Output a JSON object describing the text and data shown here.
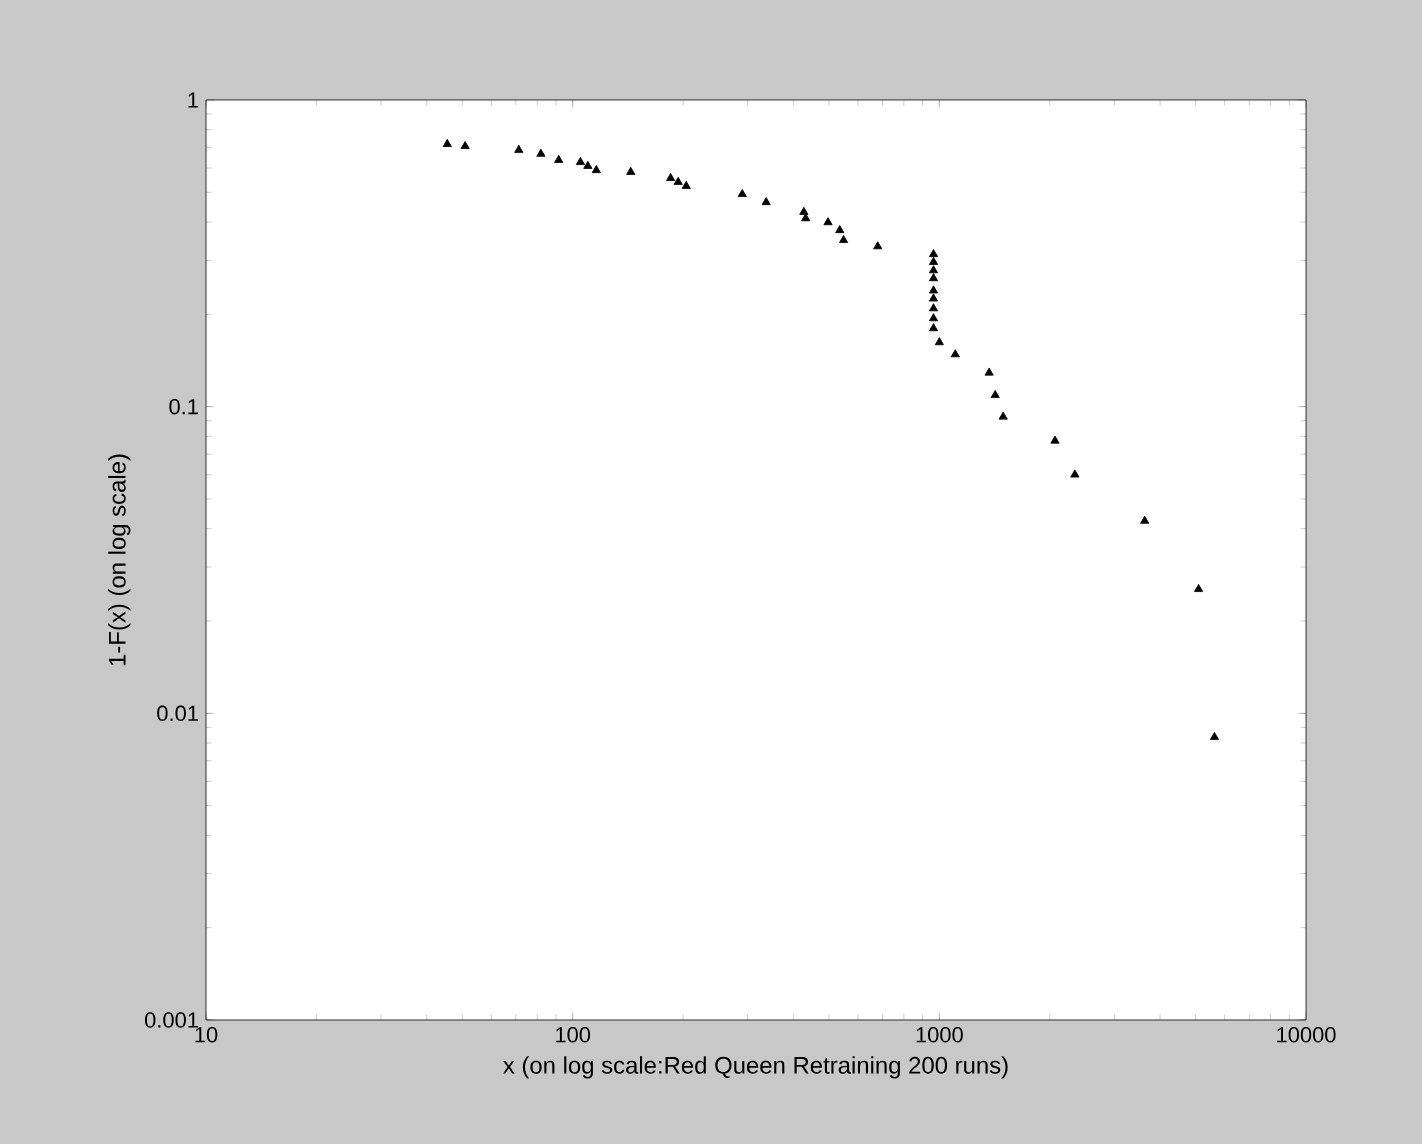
{
  "chart_data": {
    "type": "scatter",
    "xlabel": "x (on log scale:Red Queen Retraining 200 runs)",
    "ylabel": "1-F(x) (on log scale)",
    "log": "xy",
    "marker": "triangle",
    "grid": false,
    "xlim": [
      10,
      10000
    ],
    "ylim": [
      0.001,
      1
    ],
    "xticks": [
      10,
      100,
      1000,
      10000
    ],
    "yticks": [
      0.001,
      0.01,
      0.1,
      1
    ],
    "series": [
      {
        "color": "#000000",
        "x": [
          45.5,
          50.9,
          71.3,
          81.9,
          91.6,
          105,
          110,
          116,
          144,
          185,
          194,
          204,
          290,
          337,
          427,
          432,
          497,
          535,
          548,
          679,
          964,
          964,
          964,
          964,
          964,
          964,
          964,
          964,
          964,
          1000,
          1105,
          1367,
          1420,
          1493,
          2067,
          2342,
          3631,
          5093,
          5628
        ],
        "values": [
          0.718,
          0.707,
          0.687,
          0.667,
          0.637,
          0.627,
          0.609,
          0.59,
          0.582,
          0.556,
          0.54,
          0.524,
          0.493,
          0.464,
          0.431,
          0.411,
          0.399,
          0.376,
          0.349,
          0.333,
          0.314,
          0.296,
          0.278,
          0.262,
          0.239,
          0.225,
          0.209,
          0.194,
          0.18,
          0.162,
          0.148,
          0.129,
          0.109,
          0.0927,
          0.0774,
          0.06,
          0.0424,
          0.0254,
          0.00836
        ]
      }
    ]
  }
}
